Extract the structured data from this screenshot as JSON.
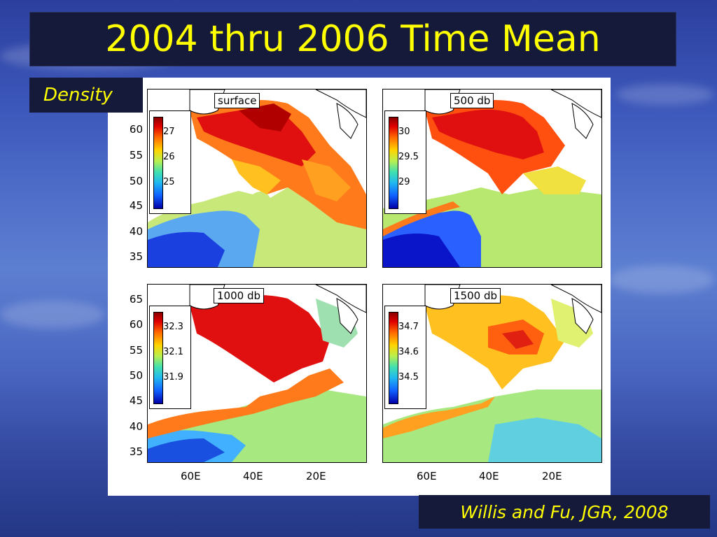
{
  "title": "2004 thru 2006 Time Mean",
  "section_label": "Density",
  "credit": "Willis and Fu, JGR, 2008",
  "latitude_ticks": [
    "65",
    "60",
    "55",
    "50",
    "45",
    "40",
    "35"
  ],
  "longitude_ticks": [
    "60E",
    "40E",
    "20E"
  ],
  "panels": [
    {
      "label": "surface",
      "colorbar_ticks": [
        "27",
        "26",
        "25"
      ]
    },
    {
      "label": "500 db",
      "colorbar_ticks": [
        "30",
        "29.5",
        "29"
      ]
    },
    {
      "label": "1000 db",
      "colorbar_ticks": [
        "32.3",
        "32.1",
        "31.9"
      ]
    },
    {
      "label": "1500 db",
      "colorbar_ticks": [
        "34.7",
        "34.6",
        "34.5"
      ]
    }
  ],
  "colors": {
    "title_text": "#ffff00",
    "box_background": "#151a3a",
    "warm": "#e00000",
    "cool": "#1060ff"
  }
}
